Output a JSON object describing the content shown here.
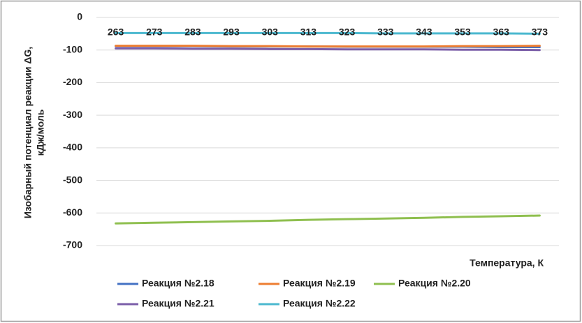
{
  "chart_data": {
    "type": "line",
    "y_label": [
      "Изобарный потенциал реакции ΔG,",
      "кДж/моль"
    ],
    "x_label": "Температура, К",
    "categories": [
      "263",
      "273",
      "283",
      "293",
      "303",
      "313",
      "323",
      "333",
      "343",
      "353",
      "363",
      "373"
    ],
    "series": [
      {
        "name": "Реакция №2.18",
        "color": "#4472c4",
        "values": [
          -88,
          -88,
          -88,
          -89,
          -89,
          -89,
          -90,
          -90,
          -90,
          -90,
          -91,
          -91
        ]
      },
      {
        "name": "Реакция №2.19",
        "color": "#ed7d31",
        "values": [
          -87,
          -87,
          -87,
          -88,
          -88,
          -89,
          -89,
          -89,
          -89,
          -88,
          -88,
          -87
        ]
      },
      {
        "name": "Реакция №2.20",
        "color": "#8fbf4f",
        "values": [
          -632,
          -630,
          -628,
          -626,
          -624,
          -621,
          -619,
          -617,
          -615,
          -612,
          -610,
          -608
        ]
      },
      {
        "name": "Реакция №2.21",
        "color": "#7b5ea8",
        "values": [
          -95,
          -95,
          -96,
          -96,
          -97,
          -97,
          -98,
          -98,
          -98,
          -99,
          -99,
          -100
        ]
      },
      {
        "name": "Реакция №2.22",
        "color": "#4bb8cf",
        "values": [
          -48,
          -48,
          -48,
          -48,
          -48,
          -48,
          -48,
          -49,
          -49,
          -49,
          -49,
          -50
        ]
      }
    ],
    "ylim": [
      -700,
      0
    ],
    "yticks": [
      0,
      -100,
      -200,
      -300,
      -400,
      -500,
      -600,
      -700
    ],
    "grid": true
  }
}
